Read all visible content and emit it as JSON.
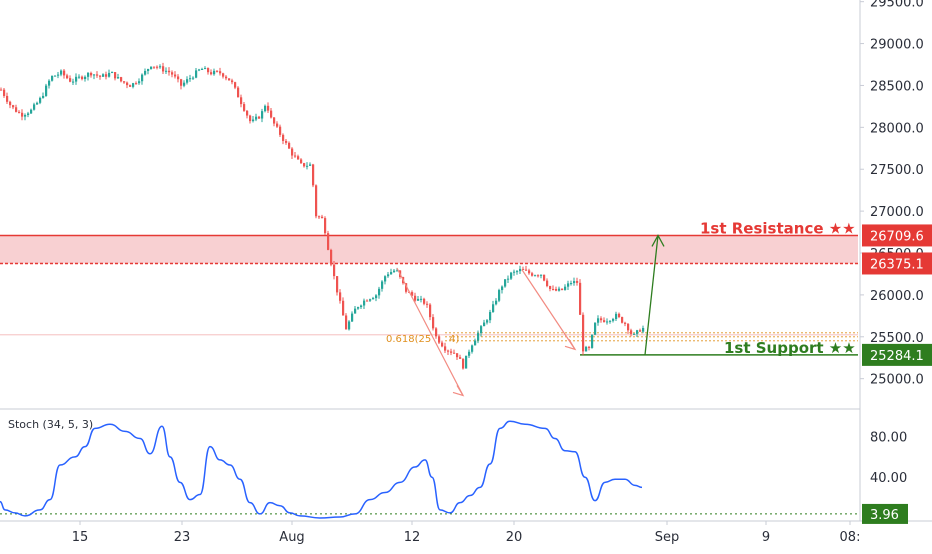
{
  "chart_data": [
    {
      "type": "candlestick",
      "title": "",
      "x_axis_labels": [
        "15",
        "23",
        "Aug",
        "12",
        "20",
        "Sep",
        "9",
        "08:"
      ],
      "y_ticks": [
        "29500.0",
        "29000.0",
        "28500.0",
        "28000.0",
        "27500.0",
        "27000.0",
        "26500.0",
        "26000.0",
        "25500.0",
        "25000.0"
      ],
      "ylim": [
        24650,
        29520
      ],
      "price_path": [
        [
          0,
          28450
        ],
        [
          10,
          28250
        ],
        [
          20,
          28150
        ],
        [
          30,
          28200
        ],
        [
          40,
          28350
        ],
        [
          50,
          28600
        ],
        [
          60,
          28650
        ],
        [
          70,
          28550
        ],
        [
          80,
          28600
        ],
        [
          90,
          28650
        ],
        [
          100,
          28600
        ],
        [
          110,
          28650
        ],
        [
          120,
          28550
        ],
        [
          130,
          28500
        ],
        [
          140,
          28600
        ],
        [
          150,
          28750
        ],
        [
          160,
          28700
        ],
        [
          170,
          28650
        ],
        [
          180,
          28500
        ],
        [
          190,
          28600
        ],
        [
          200,
          28700
        ],
        [
          210,
          28650
        ],
        [
          220,
          28650
        ],
        [
          230,
          28550
        ],
        [
          240,
          28300
        ],
        [
          250,
          28050
        ],
        [
          260,
          28150
        ],
        [
          265,
          28300
        ],
        [
          270,
          28100
        ],
        [
          280,
          27900
        ],
        [
          290,
          27700
        ],
        [
          300,
          27550
        ],
        [
          310,
          27550
        ],
        [
          315,
          26950
        ],
        [
          322,
          26900
        ],
        [
          328,
          26500
        ],
        [
          335,
          26100
        ],
        [
          345,
          25600
        ],
        [
          355,
          25850
        ],
        [
          365,
          25950
        ],
        [
          375,
          26000
        ],
        [
          385,
          26250
        ],
        [
          395,
          26300
        ],
        [
          405,
          26050
        ],
        [
          415,
          25950
        ],
        [
          425,
          25900
        ],
        [
          435,
          25500
        ],
        [
          445,
          25350
        ],
        [
          455,
          25300
        ],
        [
          462,
          25150
        ],
        [
          470,
          25400
        ],
        [
          480,
          25600
        ],
        [
          490,
          25800
        ],
        [
          500,
          26100
        ],
        [
          510,
          26250
        ],
        [
          520,
          26300
        ],
        [
          530,
          26250
        ],
        [
          540,
          26250
        ],
        [
          550,
          26050
        ],
        [
          560,
          26050
        ],
        [
          570,
          26150
        ],
        [
          578,
          26150
        ],
        [
          580,
          25350
        ],
        [
          588,
          25350
        ],
        [
          595,
          25700
        ],
        [
          605,
          25700
        ],
        [
          615,
          25750
        ],
        [
          625,
          25650
        ],
        [
          632,
          25500
        ],
        [
          640,
          25600
        ]
      ],
      "levels": {
        "resistance_zone": [
          26375.1,
          26709.6
        ],
        "support": 25284.1,
        "fib_level": 25500
      },
      "labels": {
        "resistance_text": "1st Resistance ★★",
        "support_text": "1st Support ★★",
        "fib_label": "0.618(25",
        "fib_label_tail": "4)"
      },
      "price_tags": [
        {
          "name": "resistance-top-tag",
          "text": "26709.6",
          "value": 26709.6,
          "color": "#e53935"
        },
        {
          "name": "resistance-bottom-tag",
          "text": "26375.1",
          "value": 26375.1,
          "color": "#e53935"
        },
        {
          "name": "support-tag",
          "text": "25284.1",
          "value": 25284.1,
          "color": "#2e7d1f"
        }
      ],
      "projection": {
        "from": [
          645,
          25284.1
        ],
        "to": [
          658,
          26709.6
        ]
      },
      "patterns": [
        {
          "from": [
            397,
            26320
          ],
          "to": [
            463,
            24800
          ]
        },
        {
          "from": [
            522,
            26300
          ],
          "to": [
            575,
            25350
          ]
        }
      ]
    },
    {
      "type": "line",
      "indicator": "Stoch (34, 5, 3)",
      "y_ticks": [
        "80.00",
        "40.00"
      ],
      "ylim": [
        -2,
        106
      ],
      "series": [
        {
          "name": "Stoch (34, 5, 3)",
          "values": [
            [
              0,
              16
            ],
            [
              5,
              8
            ],
            [
              15,
              5
            ],
            [
              25,
              2
            ],
            [
              40,
              8
            ],
            [
              50,
              18
            ],
            [
              60,
              52
            ],
            [
              75,
              60
            ],
            [
              85,
              70
            ],
            [
              95,
              88
            ],
            [
              110,
              92
            ],
            [
              125,
              85
            ],
            [
              140,
              78
            ],
            [
              150,
              63
            ],
            [
              162,
              90
            ],
            [
              170,
              60
            ],
            [
              180,
              35
            ],
            [
              190,
              18
            ],
            [
              200,
              23
            ],
            [
              210,
              70
            ],
            [
              220,
              57
            ],
            [
              230,
              52
            ],
            [
              240,
              38
            ],
            [
              250,
              15
            ],
            [
              260,
              4
            ],
            [
              270,
              15
            ],
            [
              280,
              12
            ],
            [
              290,
              5
            ],
            [
              300,
              2
            ],
            [
              320,
              0
            ],
            [
              340,
              1
            ],
            [
              355,
              4
            ],
            [
              370,
              18
            ],
            [
              385,
              25
            ],
            [
              400,
              35
            ],
            [
              415,
              50
            ],
            [
              425,
              57
            ],
            [
              432,
              40
            ],
            [
              440,
              8
            ],
            [
              450,
              5
            ],
            [
              460,
              15
            ],
            [
              470,
              22
            ],
            [
              480,
              30
            ],
            [
              490,
              53
            ],
            [
              500,
              88
            ],
            [
              510,
              95
            ],
            [
              525,
              92
            ],
            [
              545,
              88
            ],
            [
              555,
              78
            ],
            [
              565,
              66
            ],
            [
              575,
              65
            ],
            [
              585,
              40
            ],
            [
              595,
              17
            ],
            [
              605,
              35
            ],
            [
              615,
              38
            ],
            [
              625,
              38
            ],
            [
              635,
              32
            ],
            [
              642,
              30
            ]
          ]
        }
      ],
      "levels": {
        "oversold": 3.96
      },
      "current_value_text": "3.96"
    }
  ],
  "colors": {
    "bull": "#26a69a",
    "bear": "#ef5350",
    "resistance": "#e53935",
    "resistance_fill": "#f8d0d2",
    "support": "#2e7d1f",
    "stoch_line": "#2962ff",
    "fib": "#e0901f",
    "pattern": "#f28b82",
    "axis_text": "#2a2e39"
  }
}
